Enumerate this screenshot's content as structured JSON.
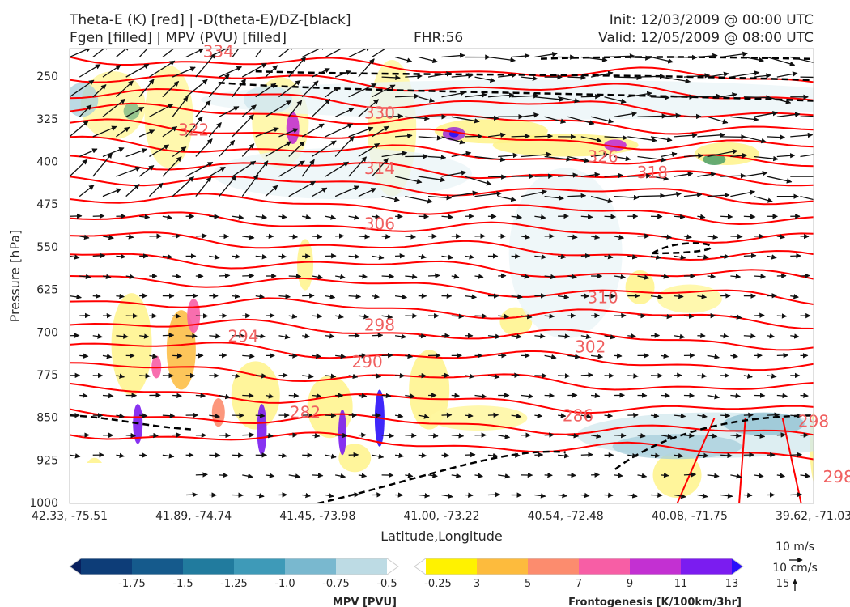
{
  "header": {
    "title_line1": "Theta-E (K) [red] | -D(theta-E)/DZ-[black]",
    "title_line2": "Fgen [filled] | MPV (PVU) [filled]",
    "fhr": "FHR:56",
    "init": "Init: 12/03/2009 @ 00:00 UTC",
    "valid": "Valid: 12/05/2009 @ 08:00 UTC"
  },
  "chart_data": {
    "type": "cross-section",
    "xlabel": "Latitude,Longitude",
    "ylabel": "Pressure [hPa]",
    "x_ticks": [
      "42.33, -75.51",
      "41.89, -74.74",
      "41.45, -73.98",
      "41.00, -73.22",
      "40.54, -72.48",
      "40.08, -71.75",
      "39.62, -71.03"
    ],
    "y_ticks": [
      250,
      325,
      400,
      475,
      550,
      625,
      700,
      775,
      850,
      925,
      1000
    ],
    "ylim": [
      1000,
      200
    ],
    "theta_e_contour_labels": [
      {
        "value": "334",
        "x_index": 1.2,
        "p": 207
      },
      {
        "value": "330",
        "x_index": 2.5,
        "p": 315
      },
      {
        "value": "322",
        "x_index": 1.0,
        "p": 345
      },
      {
        "value": "314",
        "x_index": 2.5,
        "p": 413
      },
      {
        "value": "326",
        "x_index": 4.3,
        "p": 392
      },
      {
        "value": "318",
        "x_index": 4.7,
        "p": 420
      },
      {
        "value": "306",
        "x_index": 2.5,
        "p": 510
      },
      {
        "value": "310",
        "x_index": 4.3,
        "p": 640
      },
      {
        "value": "298",
        "x_index": 2.5,
        "p": 688
      },
      {
        "value": "294",
        "x_index": 1.4,
        "p": 708
      },
      {
        "value": "302",
        "x_index": 4.2,
        "p": 727
      },
      {
        "value": "290",
        "x_index": 2.4,
        "p": 753
      },
      {
        "value": "282",
        "x_index": 1.9,
        "p": 842
      },
      {
        "value": "286",
        "x_index": 4.1,
        "p": 848
      },
      {
        "value": "298",
        "x_index": 6.0,
        "p": 858
      },
      {
        "value": "298",
        "x_index": 6.2,
        "p": 955
      }
    ],
    "colorbar_mpv": {
      "title": "MPV [PVU]",
      "ticks": [
        "-1.75",
        "-1.5",
        "-1.25",
        "-1.0",
        "-0.75",
        "-0.5",
        "-0.25"
      ],
      "colors": [
        "#08205e",
        "#0d3d78",
        "#155a8c",
        "#217b9e",
        "#3e9ab8",
        "#79b8cf",
        "#bddbe4",
        "#ffffff"
      ]
    },
    "colorbar_fgen": {
      "title": "Frontogenesis [K/100km/3hr]",
      "ticks": [
        "3",
        "5",
        "7",
        "9",
        "11",
        "13",
        "15"
      ],
      "colors": [
        "#ffffff",
        "#fff200",
        "#fdbb3d",
        "#fc8c6e",
        "#f75ea5",
        "#c330d2",
        "#7b1cf0",
        "#2a10fa"
      ]
    },
    "wind_reference": {
      "horizontal": "10 m/s",
      "vertical": "10 cm/s"
    }
  }
}
